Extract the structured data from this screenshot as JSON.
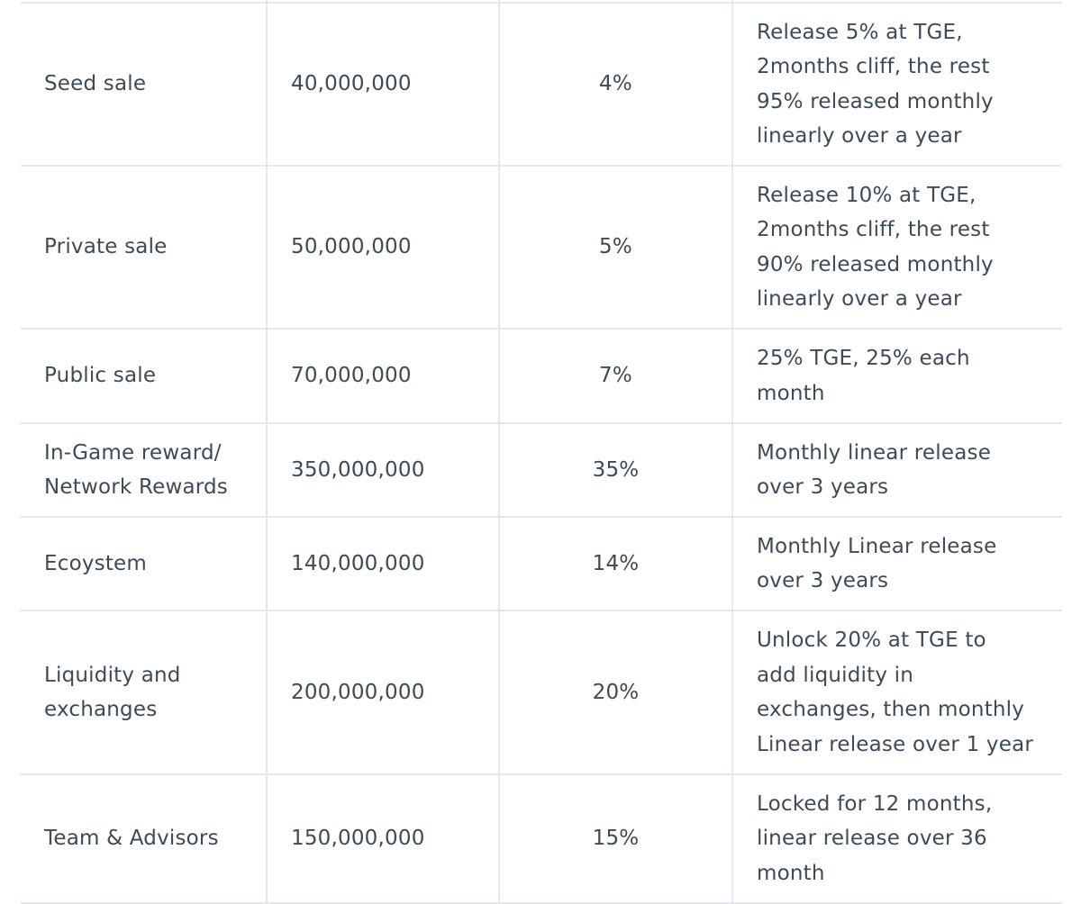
{
  "table": {
    "rows": [
      {
        "name": "Seed sale",
        "amount": "40,000,000",
        "percent": "4%",
        "unlock_lines": [
          "Release 5% at TGE,",
          "2months cliff, the rest",
          "95% released monthly",
          "linearly over a year"
        ]
      },
      {
        "name": "Private sale",
        "amount": "50,000,000",
        "percent": "5%",
        "unlock_lines": [
          "Release 10% at TGE,",
          "2months cliff, the rest",
          "90% released monthly",
          "linearly over a year"
        ]
      },
      {
        "name": "Public sale",
        "amount": "70,000,000",
        "percent": "7%",
        "unlock_lines": [
          "25% TGE, 25% each",
          "month"
        ]
      },
      {
        "name_lines": [
          "In-Game reward/",
          "Network Rewards"
        ],
        "amount": "350,000,000",
        "percent": "35%",
        "unlock_lines": [
          "Monthly linear release",
          "over 3 years"
        ]
      },
      {
        "name": "Ecoystem",
        "amount": "140,000,000",
        "percent": "14%",
        "unlock_lines": [
          "Monthly Linear release",
          "over 3 years"
        ]
      },
      {
        "name_lines": [
          "Liquidity and",
          "exchanges"
        ],
        "amount": "200,000,000",
        "percent": "20%",
        "unlock_lines": [
          "Unlock 20% at TGE to",
          "add liquidity in",
          "exchanges, then monthly",
          "Linear release over 1 year"
        ]
      },
      {
        "name": "Team & Advisors",
        "amount": "150,000,000",
        "percent": "15%",
        "unlock_lines": [
          "Locked for 12 months,",
          "linear release over 36",
          "month"
        ]
      }
    ]
  }
}
